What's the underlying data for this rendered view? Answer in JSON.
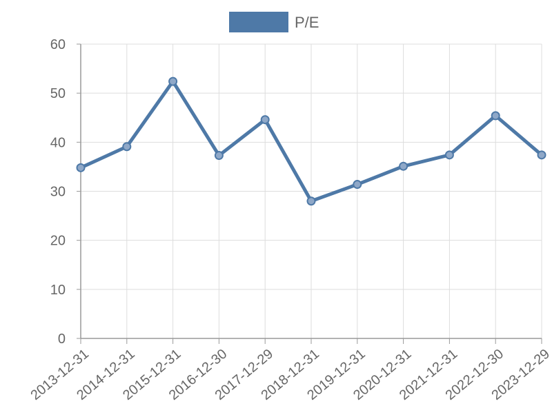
{
  "chart_data": {
    "type": "line",
    "legend_position": "top",
    "grid": true,
    "x": [
      "2013-12-31",
      "2014-12-31",
      "2015-12-31",
      "2016-12-30",
      "2017-12-29",
      "2018-12-31",
      "2019-12-31",
      "2020-12-31",
      "2021-12-31",
      "2022-12-30",
      "2023-12-29"
    ],
    "series": [
      {
        "name": "P/E",
        "values": [
          34.8,
          39.1,
          52.4,
          37.3,
          44.6,
          28.0,
          31.4,
          35.1,
          37.4,
          45.4,
          37.4
        ]
      }
    ],
    "y_ticks": [
      0,
      10,
      20,
      30,
      40,
      50,
      60
    ],
    "ylim": [
      0,
      60
    ],
    "colors": {
      "series": "#4e79a7",
      "point_fill": "#8fa8c8",
      "grid": "#dddddd",
      "axis": "#999999",
      "text": "#666666"
    }
  }
}
